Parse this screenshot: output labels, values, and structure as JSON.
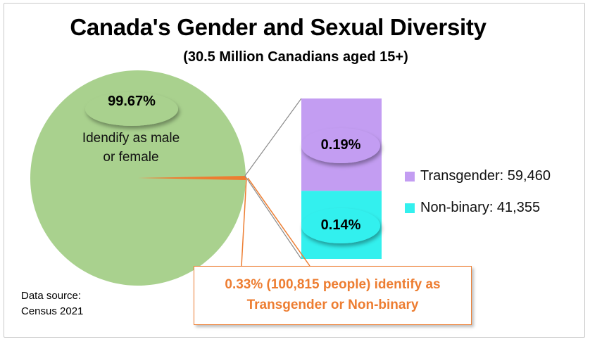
{
  "chart_data": {
    "type": "pie",
    "title": "Canada's Gender and Sexual Diversity",
    "subtitle": "(30.5 Million Canadians aged 15+)",
    "slices": [
      {
        "label_lines": [
          "Idendify as male",
          "or female"
        ],
        "percent_label": "99.67%",
        "value": 99.67,
        "color": "#a9d18e"
      },
      {
        "percent_label": "0.33%",
        "value": 0.33,
        "color": "#ed7d31"
      }
    ],
    "breakdown": {
      "type": "stacked-bar",
      "segments": [
        {
          "name": "Transgender",
          "percent_label": "0.19%",
          "value": 0.19,
          "legend": "Transgender: 59,460",
          "count": 59460,
          "color": "#c39df2"
        },
        {
          "name": "Non-binary",
          "percent_label": "0.14%",
          "value": 0.14,
          "legend": "Non-binary: 41,355",
          "count": 41355,
          "color": "#33f0ee"
        }
      ]
    },
    "callout": {
      "line1": "0.33% (100,815 people) identify as",
      "line2": "Transgender or Non-binary"
    },
    "source": {
      "line1": "Data source:",
      "line2": "Census 2021"
    }
  }
}
